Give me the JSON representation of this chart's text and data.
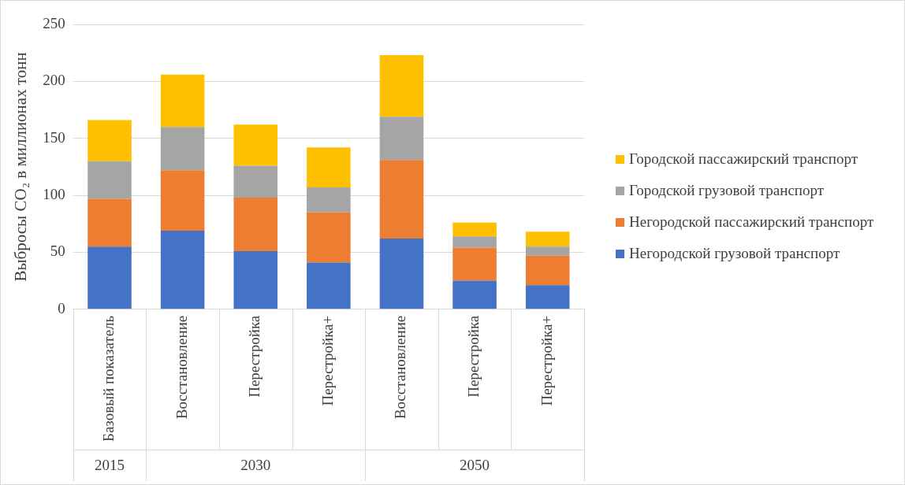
{
  "chart_data": {
    "type": "bar",
    "stacked": true,
    "ylabel": "Выбросы CO₂ в миллионах тонн",
    "categories": [
      "Базовый показатель",
      "Восстановление",
      "Перестройка",
      "Перестройка+",
      "Восстановление",
      "Перестройка",
      "Перестройка+"
    ],
    "series": [
      {
        "name": "Негородской грузовой транспорт",
        "color": "#4472c4",
        "values": [
          55,
          69,
          51,
          41,
          62,
          25,
          21
        ]
      },
      {
        "name": "Негородской пассажирский транспорт",
        "color": "#ed7d31",
        "values": [
          42,
          53,
          47,
          44,
          69,
          29,
          26
        ]
      },
      {
        "name": "Городской грузовой транспорт",
        "color": "#a5a5a5",
        "values": [
          33,
          38,
          28,
          22,
          38,
          10,
          8
        ]
      },
      {
        "name": "Городской пассажирский транспорт",
        "color": "#ffc000",
        "values": [
          36,
          46,
          36,
          35,
          54,
          12,
          13
        ]
      }
    ],
    "ylim": [
      0,
      250
    ],
    "yticks": [
      0,
      50,
      100,
      150,
      200,
      250
    ],
    "grid": "y",
    "legend": "right",
    "annotations": [
      "2015",
      "2030",
      "2050"
    ]
  }
}
